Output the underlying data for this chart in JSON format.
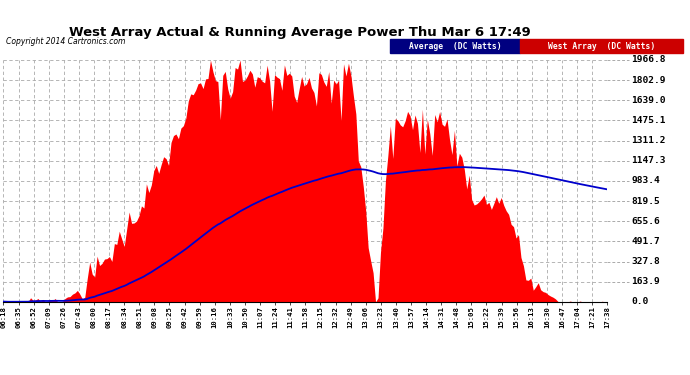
{
  "title": "West Array Actual & Running Average Power Thu Mar 6 17:49",
  "copyright": "Copyright 2014 Cartronics.com",
  "ylabel_right_ticks": [
    0.0,
    163.9,
    327.8,
    491.7,
    655.6,
    819.5,
    983.4,
    1147.3,
    1311.2,
    1475.1,
    1639.0,
    1802.9,
    1966.8
  ],
  "ymax": 1966.8,
  "ymin": 0.0,
  "fig_bg_color": "#ffffff",
  "plot_bg_color": "#ffffff",
  "grid_color": "#aaaaaa",
  "fill_color": "#ff0000",
  "line_color": "#0000cc",
  "time_labels": [
    "06:18",
    "06:35",
    "06:52",
    "07:09",
    "07:26",
    "07:43",
    "08:00",
    "08:17",
    "08:34",
    "08:51",
    "09:08",
    "09:25",
    "09:42",
    "09:59",
    "10:16",
    "10:33",
    "10:50",
    "11:07",
    "11:24",
    "11:41",
    "11:58",
    "12:15",
    "12:32",
    "12:49",
    "13:06",
    "13:23",
    "13:40",
    "13:57",
    "14:14",
    "14:31",
    "14:48",
    "15:05",
    "15:22",
    "15:39",
    "15:56",
    "16:13",
    "16:30",
    "16:47",
    "17:04",
    "17:21",
    "17:38"
  ]
}
